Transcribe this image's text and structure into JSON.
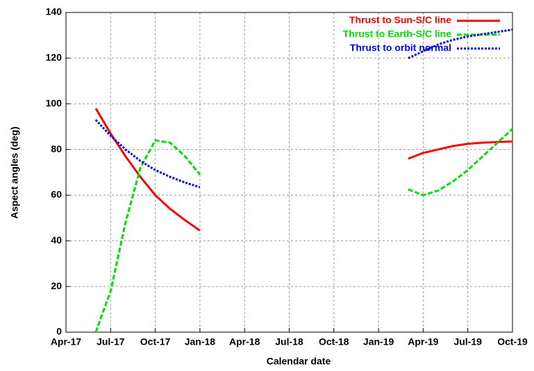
{
  "chart_data": {
    "type": "line",
    "xlabel": "Calendar date",
    "ylabel": "Aspect angles (deg)",
    "x": [
      "2017-06",
      "2017-07",
      "2017-08",
      "2017-09",
      "2017-10",
      "2017-11",
      "2017-12",
      "2018-01",
      "2018-02",
      "2018-03",
      "2018-04",
      "2018-05",
      "2018-06",
      "2018-07",
      "2018-08",
      "2018-09",
      "2018-10",
      "2018-11",
      "2018-12",
      "2019-01",
      "2019-02",
      "2019-03",
      "2019-04",
      "2019-05",
      "2019-06",
      "2019-07",
      "2019-08",
      "2019-09",
      "2019-10"
    ],
    "series": [
      {
        "name": "Thrust to Sun-S/C line",
        "color": "#ff0000",
        "dash": "solid",
        "values": [
          98,
          87,
          77,
          68,
          60,
          54,
          49,
          44.5,
          null,
          null,
          null,
          null,
          null,
          null,
          null,
          null,
          null,
          null,
          null,
          null,
          null,
          76,
          78.5,
          80,
          81.5,
          82.5,
          83,
          83.3,
          83.5
        ]
      },
      {
        "name": "Thrust to Earth-S/C line",
        "color": "#00e000",
        "dash": "dashed",
        "values": [
          0,
          18,
          48,
          72,
          84,
          83,
          77,
          69,
          null,
          null,
          null,
          null,
          null,
          null,
          null,
          null,
          null,
          null,
          null,
          null,
          null,
          62.5,
          60,
          62,
          66,
          71,
          77,
          83,
          89
        ]
      },
      {
        "name": "Thrust to orbit normal",
        "color": "#0000ff",
        "dash": "dotted",
        "values": [
          93,
          86,
          80,
          75,
          71,
          68,
          65.5,
          63.5,
          null,
          null,
          null,
          null,
          null,
          null,
          null,
          null,
          null,
          null,
          null,
          null,
          null,
          120,
          123,
          126,
          128,
          129.5,
          130.5,
          131.5,
          132.5
        ]
      }
    ],
    "xlim": [
      "2017-04",
      "2019-10"
    ],
    "xticks": [
      {
        "value": "2017-04",
        "label": "Apr-17"
      },
      {
        "value": "2017-07",
        "label": "Jul-17"
      },
      {
        "value": "2017-10",
        "label": "Oct-17"
      },
      {
        "value": "2018-01",
        "label": "Jan-18"
      },
      {
        "value": "2018-04",
        "label": "Apr-18"
      },
      {
        "value": "2018-07",
        "label": "Jul-18"
      },
      {
        "value": "2018-10",
        "label": "Oct-18"
      },
      {
        "value": "2019-01",
        "label": "Jan-19"
      },
      {
        "value": "2019-04",
        "label": "Apr-19"
      },
      {
        "value": "2019-07",
        "label": "Jul-19"
      },
      {
        "value": "2019-10",
        "label": "Oct-19"
      }
    ],
    "ylim": [
      0,
      140
    ],
    "yticks": [
      0,
      20,
      40,
      60,
      80,
      100,
      120,
      140
    ],
    "grid": true,
    "legend": "top-right"
  }
}
